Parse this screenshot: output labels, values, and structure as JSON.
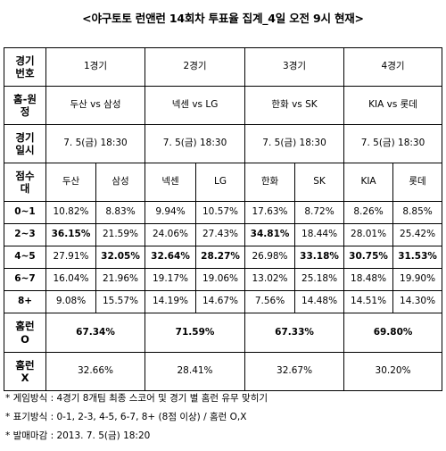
{
  "title": "<야구토토 런앤런 14회차 투표율 집계_4일 오전 9시 현재>",
  "row_labels": {
    "game": "경기\n번호",
    "match": "홈-원\n정",
    "date": "경기\n일시",
    "score": "점수\n대",
    "home_o": "홈런\nO",
    "home_x": "홈런\nX"
  },
  "games": [
    {
      "no": "1경기",
      "match": "두산 vs 삼성",
      "date": "7. 5(금) 18:30",
      "team1": "두산",
      "team2": "삼성",
      "home_o": "67.34%",
      "home_x": "32.66%"
    },
    {
      "no": "2경기",
      "match": "넥센 vs LG",
      "date": "7. 5(금) 18:30",
      "team1": "넥센",
      "team2": "LG",
      "home_o": "71.59%",
      "home_x": "28.41%"
    },
    {
      "no": "3경기",
      "match": "한화 vs SK",
      "date": "7. 5(금) 18:30",
      "team1": "한화",
      "team2": "SK",
      "home_o": "67.33%",
      "home_x": "32.67%"
    },
    {
      "no": "4경기",
      "match": "KIA vs 롯데",
      "date": "7. 5(금) 18:30",
      "team1": "KIA",
      "team2": "롯데",
      "home_o": "69.80%",
      "home_x": "30.20%"
    }
  ],
  "score_rows": [
    {
      "label": "0~1",
      "values": [
        "10.82%",
        "8.83%",
        "9.94%",
        "10.57%",
        "17.63%",
        "8.72%",
        "8.26%",
        "8.85%"
      ],
      "bold": [
        false,
        false,
        false,
        false,
        false,
        false,
        false,
        false
      ]
    },
    {
      "label": "2~3",
      "values": [
        "36.15%",
        "21.59%",
        "24.06%",
        "27.43%",
        "34.81%",
        "18.44%",
        "28.01%",
        "25.42%"
      ],
      "bold": [
        true,
        false,
        false,
        false,
        true,
        false,
        false,
        false
      ]
    },
    {
      "label": "4~5",
      "values": [
        "27.91%",
        "32.05%",
        "32.64%",
        "28.27%",
        "26.98%",
        "33.18%",
        "30.75%",
        "31.53%"
      ],
      "bold": [
        false,
        true,
        true,
        true,
        false,
        true,
        true,
        true
      ]
    },
    {
      "label": "6~7",
      "values": [
        "16.04%",
        "21.96%",
        "19.17%",
        "19.06%",
        "13.02%",
        "25.18%",
        "18.48%",
        "19.90%"
      ],
      "bold": [
        false,
        false,
        false,
        false,
        false,
        false,
        false,
        false
      ]
    },
    {
      "label": "8+",
      "values": [
        "9.08%",
        "15.57%",
        "14.19%",
        "14.67%",
        "7.56%",
        "14.48%",
        "14.51%",
        "14.30%"
      ],
      "bold": [
        false,
        false,
        false,
        false,
        false,
        false,
        false,
        false
      ]
    }
  ],
  "notes": [
    "* 게임방식 : 4경기 8개팀 최종 스코어 및 경기 별 홈런 유무 맞히기",
    "* 표기방식 : 0-1, 2-3, 4-5, 6-7, 8+ (8점 이상) / 홈런 O,X",
    "* 발매마감 : 2013. 7. 5(금) 18:20"
  ]
}
